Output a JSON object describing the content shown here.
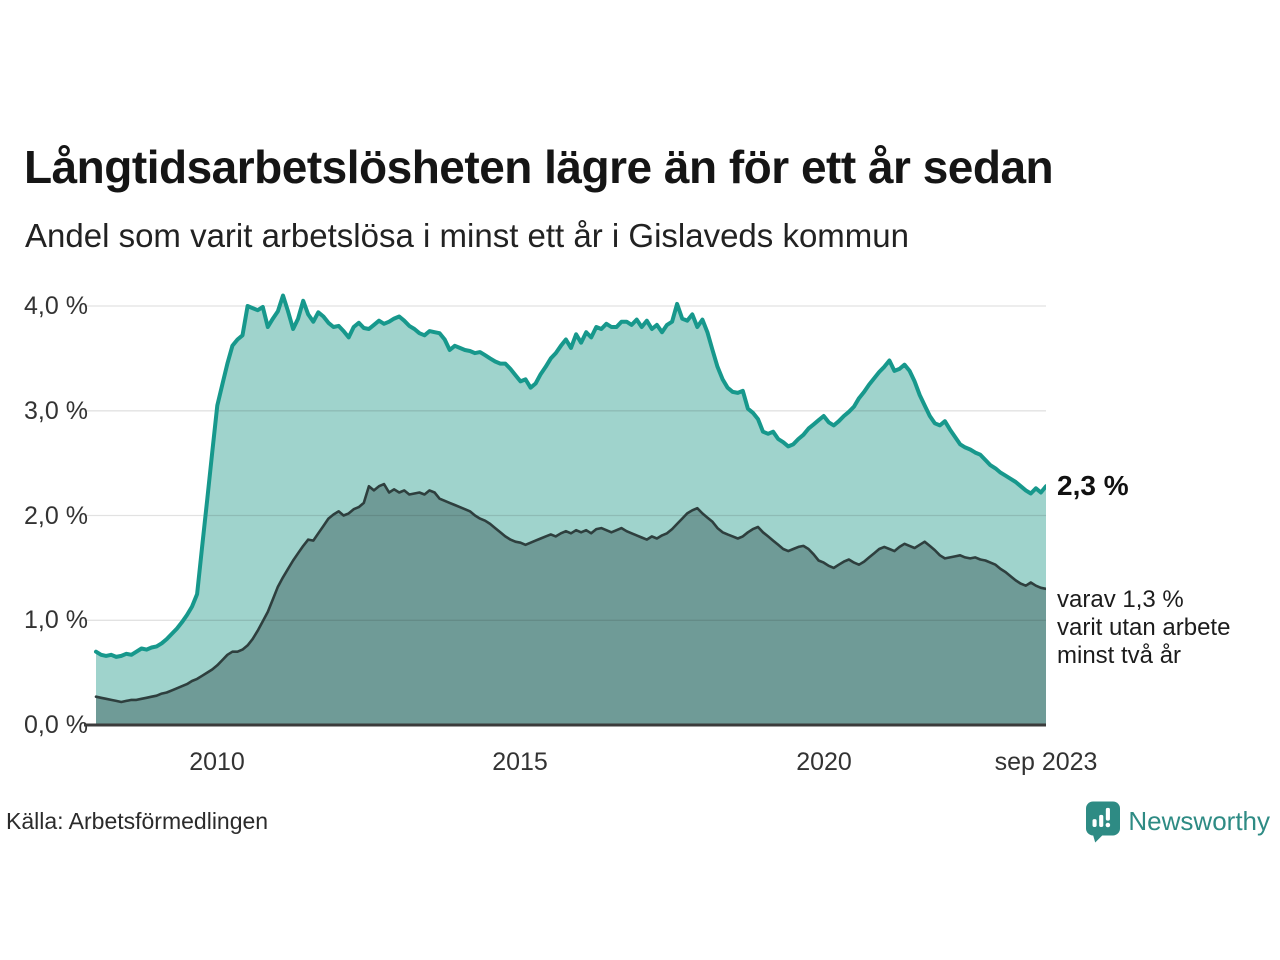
{
  "title": "Långtidsarbetslösheten lägre än för ett år sedan",
  "subtitle": "Andel som varit arbetslösa i minst ett år i Gislaveds kommun",
  "source": "Källa: Arbetsförmedlingen",
  "brand": {
    "name": "Newsworthy"
  },
  "annotations": {
    "latest_total_label": "2,3 %",
    "latest_detail_lines": [
      "varav 1,3 %",
      "varit utan arbete",
      "minst två år"
    ]
  },
  "chart_data": {
    "type": "area",
    "title": "Långtidsarbetslösheten lägre än för ett år sedan",
    "description": "Andel som varit arbetslösa i minst ett år i Gislaveds kommun",
    "unit": "%",
    "frequency": "monthly",
    "x_start": "2008-01",
    "x_end": "2023-09",
    "ylim": [
      0,
      4.15
    ],
    "grid": true,
    "axis_color": "#3b3b3b",
    "grid_color": "rgba(30,30,30,0.13)",
    "y_ticks": [
      {
        "value": 4,
        "label": "4,0 %"
      },
      {
        "value": 3,
        "label": "3,0 %"
      },
      {
        "value": 2,
        "label": "2,0 %"
      },
      {
        "value": 1,
        "label": "1,0 %"
      },
      {
        "value": 0,
        "label": "0,0 %"
      }
    ],
    "x_ticks": [
      {
        "month_index": 24,
        "label": "2010"
      },
      {
        "month_index": 84,
        "label": "2015"
      },
      {
        "month_index": 144,
        "label": "2020"
      },
      {
        "month_index": 188,
        "label": "sep 2023"
      }
    ],
    "series": [
      {
        "name": "Arbetslösa minst ett år",
        "line_color": "#17988c",
        "fill_color": "#9fd3cc",
        "line_width": 4,
        "latest_value": 2.3,
        "values": [
          0.7,
          0.67,
          0.66,
          0.67,
          0.65,
          0.66,
          0.68,
          0.67,
          0.7,
          0.73,
          0.72,
          0.74,
          0.75,
          0.78,
          0.82,
          0.87,
          0.92,
          0.98,
          1.05,
          1.13,
          1.25,
          1.7,
          2.15,
          2.6,
          3.05,
          3.25,
          3.45,
          3.62,
          3.68,
          3.72,
          4.0,
          3.98,
          3.96,
          3.99,
          3.8,
          3.88,
          3.95,
          4.1,
          3.95,
          3.78,
          3.88,
          4.05,
          3.92,
          3.85,
          3.94,
          3.9,
          3.84,
          3.8,
          3.81,
          3.76,
          3.7,
          3.8,
          3.84,
          3.79,
          3.78,
          3.82,
          3.86,
          3.83,
          3.85,
          3.88,
          3.9,
          3.86,
          3.81,
          3.78,
          3.74,
          3.72,
          3.76,
          3.75,
          3.74,
          3.68,
          3.58,
          3.62,
          3.6,
          3.58,
          3.57,
          3.55,
          3.56,
          3.53,
          3.5,
          3.47,
          3.45,
          3.45,
          3.4,
          3.34,
          3.28,
          3.3,
          3.22,
          3.26,
          3.35,
          3.42,
          3.5,
          3.55,
          3.62,
          3.68,
          3.6,
          3.73,
          3.65,
          3.75,
          3.7,
          3.8,
          3.78,
          3.83,
          3.8,
          3.8,
          3.85,
          3.85,
          3.82,
          3.87,
          3.8,
          3.86,
          3.78,
          3.82,
          3.75,
          3.82,
          3.85,
          4.02,
          3.88,
          3.86,
          3.92,
          3.8,
          3.87,
          3.75,
          3.58,
          3.42,
          3.3,
          3.22,
          3.18,
          3.17,
          3.19,
          3.02,
          2.98,
          2.92,
          2.8,
          2.78,
          2.8,
          2.73,
          2.7,
          2.66,
          2.68,
          2.73,
          2.77,
          2.83,
          2.87,
          2.91,
          2.95,
          2.89,
          2.86,
          2.9,
          2.95,
          2.99,
          3.04,
          3.12,
          3.18,
          3.25,
          3.31,
          3.37,
          3.42,
          3.48,
          3.38,
          3.4,
          3.44,
          3.38,
          3.28,
          3.15,
          3.05,
          2.95,
          2.88,
          2.86,
          2.9,
          2.82,
          2.75,
          2.68,
          2.65,
          2.63,
          2.6,
          2.58,
          2.53,
          2.48,
          2.45,
          2.41,
          2.38,
          2.35,
          2.32,
          2.28,
          2.24,
          2.21,
          2.26,
          2.22,
          2.28
        ]
      },
      {
        "name": "Utan arbete minst två år",
        "line_color": "#2e3f3e",
        "fill_color": "#6f9b97",
        "line_width": 2.6,
        "latest_value": 1.3,
        "values": [
          0.27,
          0.26,
          0.25,
          0.24,
          0.23,
          0.22,
          0.23,
          0.24,
          0.24,
          0.25,
          0.26,
          0.27,
          0.28,
          0.3,
          0.31,
          0.33,
          0.35,
          0.37,
          0.39,
          0.42,
          0.44,
          0.47,
          0.5,
          0.53,
          0.57,
          0.62,
          0.67,
          0.7,
          0.7,
          0.72,
          0.76,
          0.82,
          0.9,
          0.99,
          1.08,
          1.2,
          1.32,
          1.41,
          1.49,
          1.57,
          1.64,
          1.71,
          1.77,
          1.76,
          1.83,
          1.9,
          1.97,
          2.01,
          2.04,
          2.0,
          2.02,
          2.06,
          2.08,
          2.12,
          2.28,
          2.24,
          2.28,
          2.3,
          2.22,
          2.25,
          2.22,
          2.24,
          2.2,
          2.21,
          2.22,
          2.2,
          2.24,
          2.22,
          2.16,
          2.14,
          2.12,
          2.1,
          2.08,
          2.06,
          2.04,
          2.0,
          1.97,
          1.95,
          1.92,
          1.88,
          1.84,
          1.8,
          1.77,
          1.75,
          1.74,
          1.72,
          1.74,
          1.76,
          1.78,
          1.8,
          1.82,
          1.8,
          1.83,
          1.85,
          1.83,
          1.86,
          1.84,
          1.86,
          1.83,
          1.87,
          1.88,
          1.86,
          1.84,
          1.86,
          1.88,
          1.85,
          1.83,
          1.81,
          1.79,
          1.77,
          1.8,
          1.78,
          1.81,
          1.83,
          1.87,
          1.92,
          1.97,
          2.02,
          2.05,
          2.07,
          2.02,
          1.98,
          1.94,
          1.88,
          1.84,
          1.82,
          1.8,
          1.78,
          1.8,
          1.84,
          1.87,
          1.89,
          1.84,
          1.8,
          1.76,
          1.72,
          1.68,
          1.66,
          1.68,
          1.7,
          1.71,
          1.68,
          1.63,
          1.57,
          1.55,
          1.52,
          1.5,
          1.53,
          1.56,
          1.58,
          1.55,
          1.53,
          1.56,
          1.6,
          1.64,
          1.68,
          1.7,
          1.68,
          1.66,
          1.7,
          1.73,
          1.71,
          1.69,
          1.72,
          1.75,
          1.71,
          1.67,
          1.62,
          1.59,
          1.6,
          1.61,
          1.62,
          1.6,
          1.59,
          1.6,
          1.58,
          1.57,
          1.55,
          1.53,
          1.49,
          1.46,
          1.42,
          1.38,
          1.35,
          1.33,
          1.36,
          1.33,
          1.31,
          1.3
        ]
      }
    ]
  }
}
